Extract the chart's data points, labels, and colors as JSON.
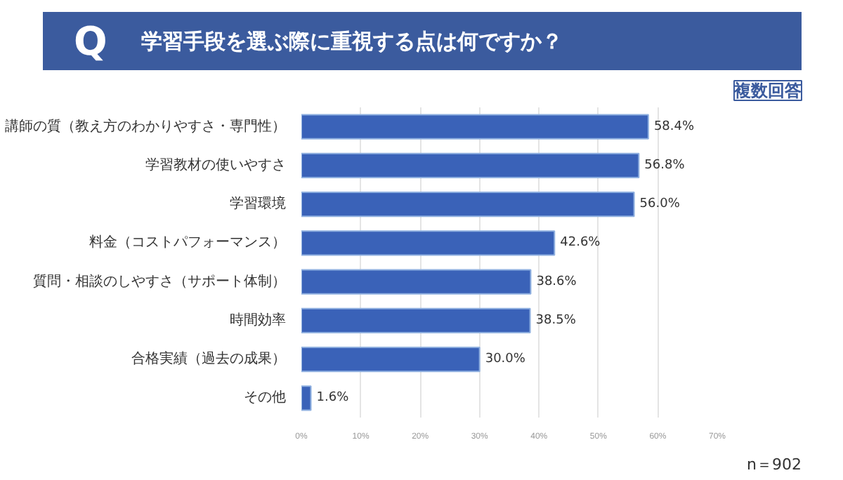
{
  "chart_data": {
    "type": "bar",
    "orientation": "horizontal",
    "title": "学習手段を選ぶ際に重視する点は何ですか？",
    "subtitle": "複数回答",
    "categories": [
      "講師の質（教え方のわかりやすさ・専門性）",
      "学習教材の使いやすさ",
      "学習環境",
      "料金（コストパフォーマンス）",
      "質問・相談のしやすさ（サポート体制）",
      "時間効率",
      "合格実績（過去の成果）",
      "その他"
    ],
    "values": [
      58.4,
      56.8,
      56.0,
      42.6,
      38.6,
      38.5,
      30.0,
      1.6
    ],
    "value_labels": [
      "58.4%",
      "56.8%",
      "56.0%",
      "42.6%",
      "38.6%",
      "38.5%",
      "30.0%",
      "1.6%"
    ],
    "color": "#3a62b8",
    "xlim": [
      0,
      70
    ],
    "xticks": [
      {
        "value": 0,
        "label": "0%"
      },
      {
        "value": 10,
        "label": "10%"
      },
      {
        "value": 20,
        "label": "20%"
      },
      {
        "value": 30,
        "label": "30%"
      },
      {
        "value": 40,
        "label": "40%"
      },
      {
        "value": 50,
        "label": "50%"
      },
      {
        "value": 60,
        "label": "60%"
      },
      {
        "value": 70,
        "label": "70%"
      }
    ],
    "grid": "x",
    "annotations": [
      "Q",
      "n＝902"
    ]
  }
}
